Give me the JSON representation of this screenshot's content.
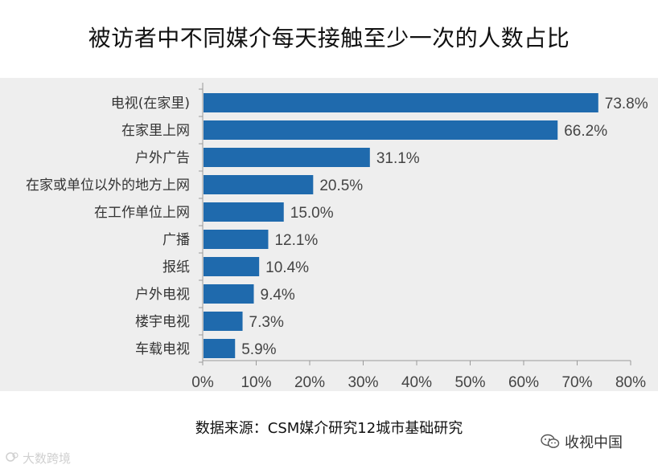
{
  "chart_data": {
    "type": "bar",
    "orientation": "horizontal",
    "title": "被访者中不同媒介每天接触至少一次的人数占比",
    "categories": [
      "电视(在家里)",
      "在家里上网",
      "户外广告",
      "在家或单位以外的地方上网",
      "在工作单位上网",
      "广播",
      "报纸",
      "户外电视",
      "楼宇电视",
      "车载电视"
    ],
    "values": [
      73.8,
      66.2,
      31.1,
      20.5,
      15.0,
      12.1,
      10.4,
      9.4,
      7.3,
      5.9
    ],
    "value_labels": [
      "73.8%",
      "66.2%",
      "31.1%",
      "20.5%",
      "15.0%",
      "12.1%",
      "10.4%",
      "9.4%",
      "7.3%",
      "5.9%"
    ],
    "xlim": [
      0,
      80
    ],
    "xticks": [
      0,
      10,
      20,
      30,
      40,
      50,
      60,
      70,
      80
    ],
    "xtick_labels": [
      "0%",
      "10%",
      "20%",
      "30%",
      "40%",
      "50%",
      "60%",
      "70%",
      "80%"
    ],
    "bar_color": "#1f6aad",
    "xlabel": "",
    "ylabel": ""
  },
  "source": "数据来源：CSM媒介研究12城市基础研究",
  "watermark_left": "大数跨境",
  "watermark_right": "收视中国"
}
